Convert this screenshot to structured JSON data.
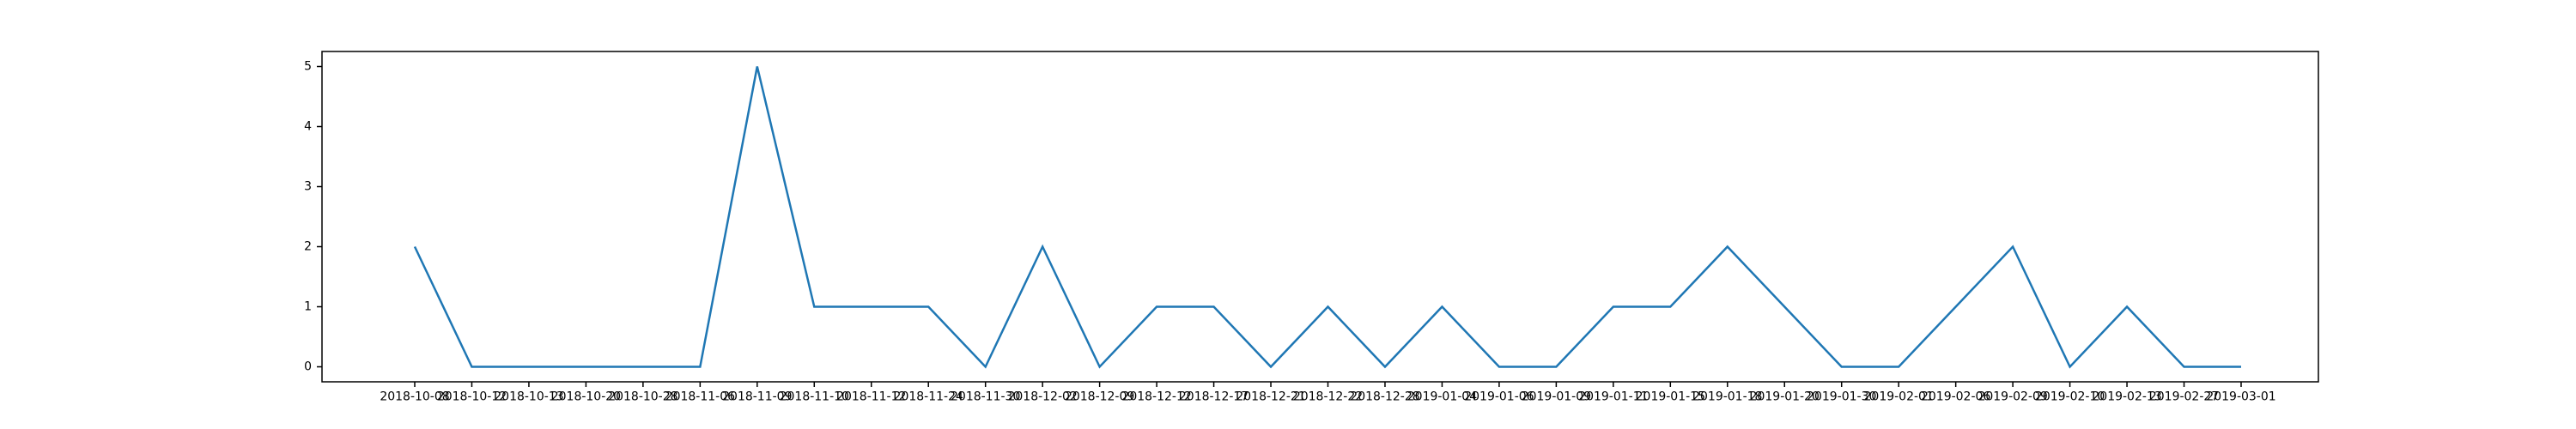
{
  "chart_data": {
    "type": "line",
    "title": "",
    "xlabel": "",
    "ylabel": "",
    "grid": false,
    "categories": [
      "2018-10-08",
      "2018-10-12",
      "2018-10-13",
      "2018-10-20",
      "2018-10-28",
      "2018-11-06",
      "2018-11-09",
      "2018-11-10",
      "2018-11-12",
      "2018-11-24",
      "2018-11-30",
      "2018-12-02",
      "2018-12-09",
      "2018-12-12",
      "2018-12-17",
      "2018-12-21",
      "2018-12-22",
      "2018-12-28",
      "2019-01-04",
      "2019-01-06",
      "2019-01-09",
      "2019-01-11",
      "2019-01-15",
      "2019-01-18",
      "2019-01-20",
      "2019-01-30",
      "2019-02-01",
      "2019-02-06",
      "2019-02-09",
      "2019-02-10",
      "2019-02-13",
      "2019-02-27",
      "2019-03-01"
    ],
    "values": [
      2,
      0,
      0,
      0,
      0,
      0,
      5,
      1,
      1,
      1,
      0,
      2,
      0,
      1,
      1,
      0,
      1,
      0,
      1,
      0,
      0,
      1,
      1,
      2,
      1,
      0,
      0,
      1,
      2,
      0,
      1,
      0,
      0
    ],
    "ylim": [
      -0.25,
      5.25
    ],
    "yticks": [
      "0",
      "1",
      "2",
      "3",
      "4",
      "5"
    ],
    "line_color": "#1f77b4"
  }
}
